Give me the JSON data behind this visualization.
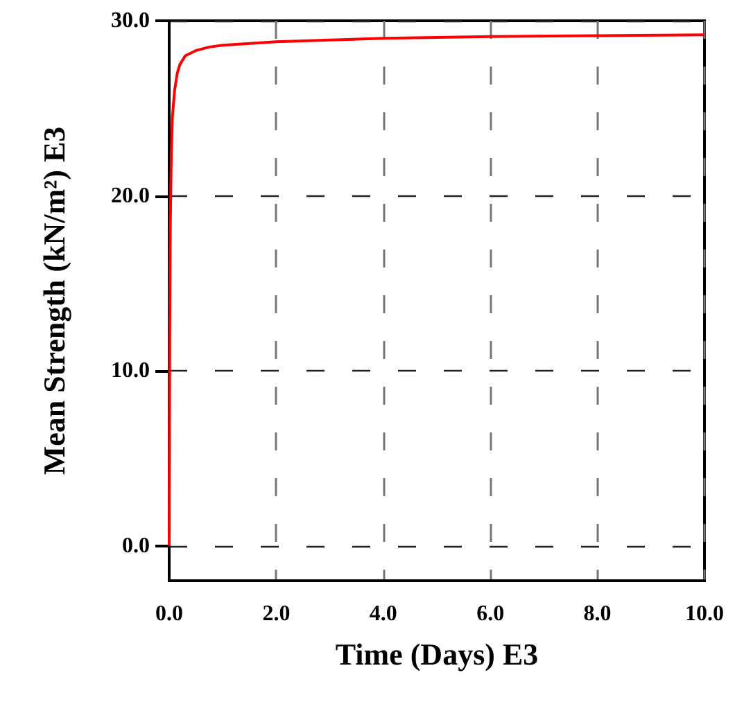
{
  "chart_data": {
    "type": "line",
    "xlabel": "Time (Days) E3",
    "ylabel": "Mean Strength (kN/m²) E3",
    "x": [
      0,
      0.01,
      0.02,
      0.04,
      0.06,
      0.1,
      0.15,
      0.2,
      0.3,
      0.5,
      0.75,
      1,
      1.5,
      2,
      3,
      4,
      6,
      8,
      10
    ],
    "series": [
      {
        "color": "#ff0000",
        "values": [
          0,
          12,
          18,
          22.5,
          24.5,
          26,
          27,
          27.5,
          28,
          28.3,
          28.5,
          28.6,
          28.7,
          28.8,
          28.9,
          29,
          29.1,
          29.15,
          29.2
        ]
      }
    ],
    "xlim": [
      0,
      10
    ],
    "ylim": [
      -2,
      30
    ],
    "xticks": [
      {
        "value": 0,
        "label": "0.0"
      },
      {
        "value": 2,
        "label": "2.0"
      },
      {
        "value": 4,
        "label": "4.0"
      },
      {
        "value": 6,
        "label": "6.0"
      },
      {
        "value": 8,
        "label": "8.0"
      },
      {
        "value": 10,
        "label": "10.0"
      }
    ],
    "yticks": [
      {
        "value": 0,
        "label": "0.0"
      },
      {
        "value": 10,
        "label": "10.0"
      },
      {
        "value": 20,
        "label": "20.0"
      },
      {
        "value": 30,
        "label": "30.0"
      }
    ],
    "grid": true,
    "line_style": "solid",
    "marker": "none"
  }
}
